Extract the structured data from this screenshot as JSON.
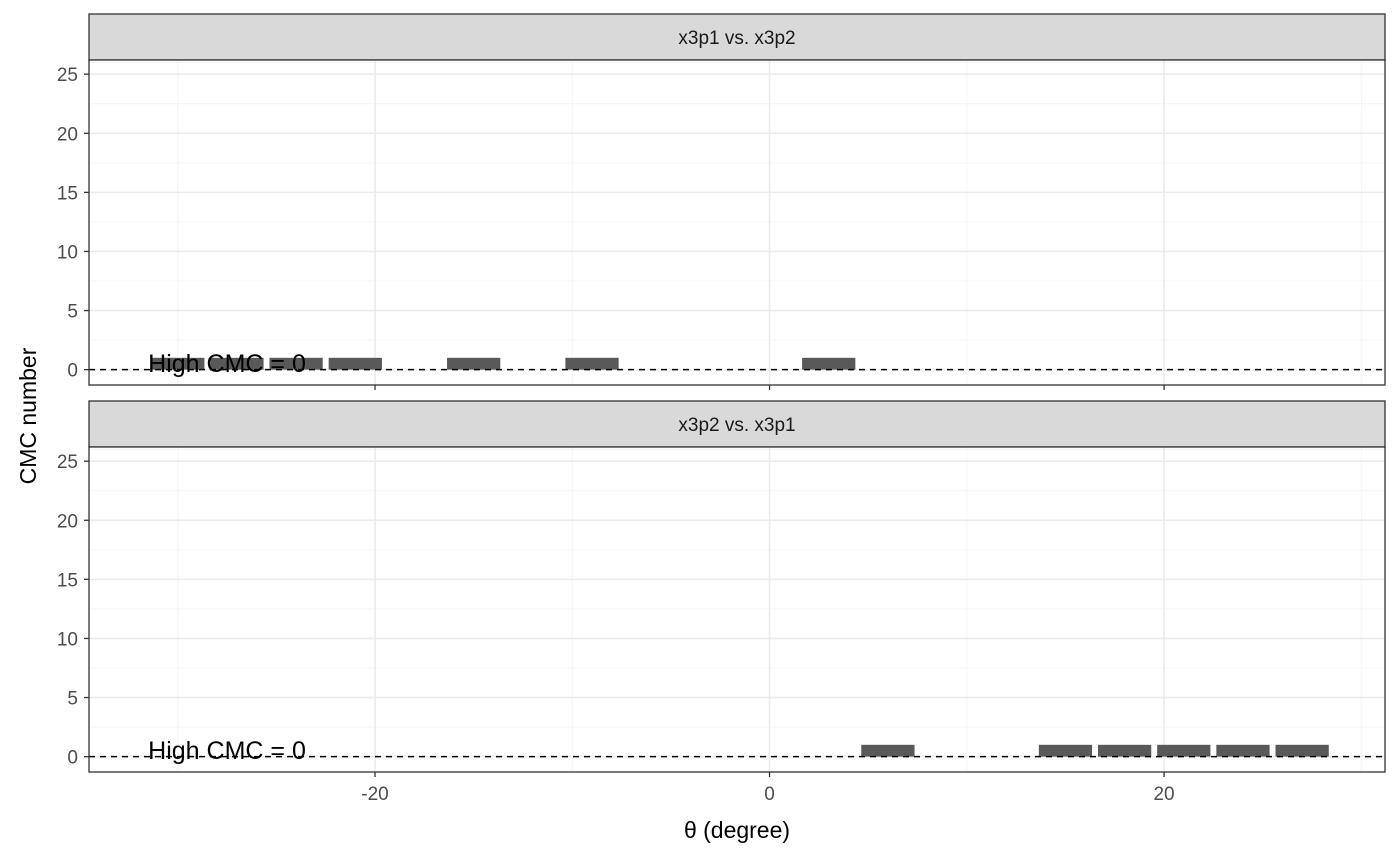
{
  "chart_data": {
    "type": "bar",
    "xlabel": "θ (degree)",
    "ylabel": "CMC number",
    "xlim": [
      -34.5,
      31.2
    ],
    "ylim": [
      -1.3,
      26.2
    ],
    "x_ticks": [
      -20,
      0,
      20
    ],
    "x_minor_ticks": [
      -30,
      -10,
      10,
      30
    ],
    "y_ticks": [
      0,
      5,
      10,
      15,
      20,
      25
    ],
    "grid": true,
    "bar_width": 2.7,
    "colors": {
      "bar": "#595959",
      "strip": "#d9d9d9",
      "grid": "#ebebeb",
      "frame": "#333333"
    },
    "panels": [
      {
        "strip": "x3p1 vs. x3p2",
        "annotation": "High CMC = 0",
        "threshold": 0,
        "bars": [
          {
            "x": -30,
            "y": 1
          },
          {
            "x": -27,
            "y": 1
          },
          {
            "x": -24,
            "y": 1
          },
          {
            "x": -21,
            "y": 1
          },
          {
            "x": -15,
            "y": 1
          },
          {
            "x": -9,
            "y": 1
          },
          {
            "x": 3,
            "y": 1
          }
        ]
      },
      {
        "strip": "x3p2 vs. x3p1",
        "annotation": "High CMC = 0",
        "threshold": 0,
        "bars": [
          {
            "x": 6,
            "y": 1
          },
          {
            "x": 15,
            "y": 1
          },
          {
            "x": 18,
            "y": 1
          },
          {
            "x": 21,
            "y": 1
          },
          {
            "x": 24,
            "y": 1
          },
          {
            "x": 27,
            "y": 1
          }
        ]
      }
    ]
  }
}
